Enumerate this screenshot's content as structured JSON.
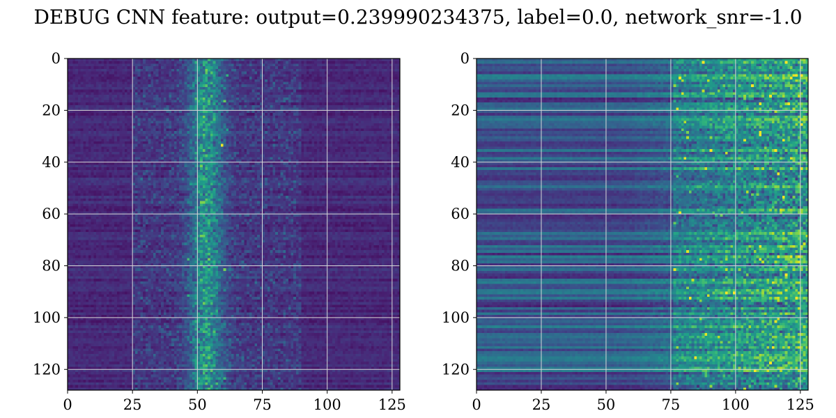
{
  "title": "DEBUG CNN feature: output=0.239990234375, label=0.0, network_snr=-1.0",
  "chart_data": [
    {
      "type": "heatmap",
      "colormap": "viridis",
      "grid": true,
      "xlim": [
        0,
        128
      ],
      "ylim": [
        128,
        0
      ],
      "xticks": [
        0,
        25,
        50,
        75,
        100,
        125
      ],
      "yticks": [
        0,
        20,
        40,
        60,
        80,
        100,
        120
      ],
      "shape": [
        128,
        128
      ],
      "pattern": "low background with a bright vertical band of activation centred near column 53"
    },
    {
      "type": "heatmap",
      "colormap": "viridis",
      "grid": true,
      "xlim": [
        0,
        128
      ],
      "ylim": [
        128,
        0
      ],
      "xticks": [
        0,
        25,
        50,
        75,
        100,
        125
      ],
      "yticks": [
        0,
        20,
        40,
        60,
        80,
        100,
        120
      ],
      "shape": [
        128,
        128
      ],
      "pattern": "horizontal streaks on the left, noisy high activation for columns 75 to 128"
    }
  ]
}
